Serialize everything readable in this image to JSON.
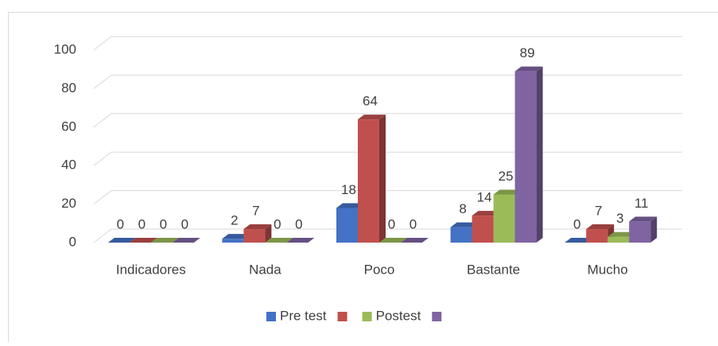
{
  "chart_data": {
    "type": "bar3d",
    "categories": [
      "Indicadores",
      "Nada",
      "Poco",
      "Bastante",
      "Mucho"
    ],
    "series": [
      {
        "name": "Pre test",
        "color": "#4472c4",
        "values": [
          0,
          2,
          18,
          8,
          0
        ]
      },
      {
        "color": "#c0504d",
        "values": [
          0,
          7,
          64,
          14,
          7
        ]
      },
      {
        "name": "Postest",
        "color": "#9bbb59",
        "values": [
          0,
          0,
          0,
          25,
          3
        ]
      },
      {
        "color": "#8064a2",
        "values": [
          0,
          0,
          0,
          89,
          11
        ]
      }
    ],
    "ylim": [
      0,
      100
    ],
    "yticks": [
      0,
      20,
      40,
      60,
      80,
      100
    ],
    "grid": true,
    "legend": "bottom"
  }
}
